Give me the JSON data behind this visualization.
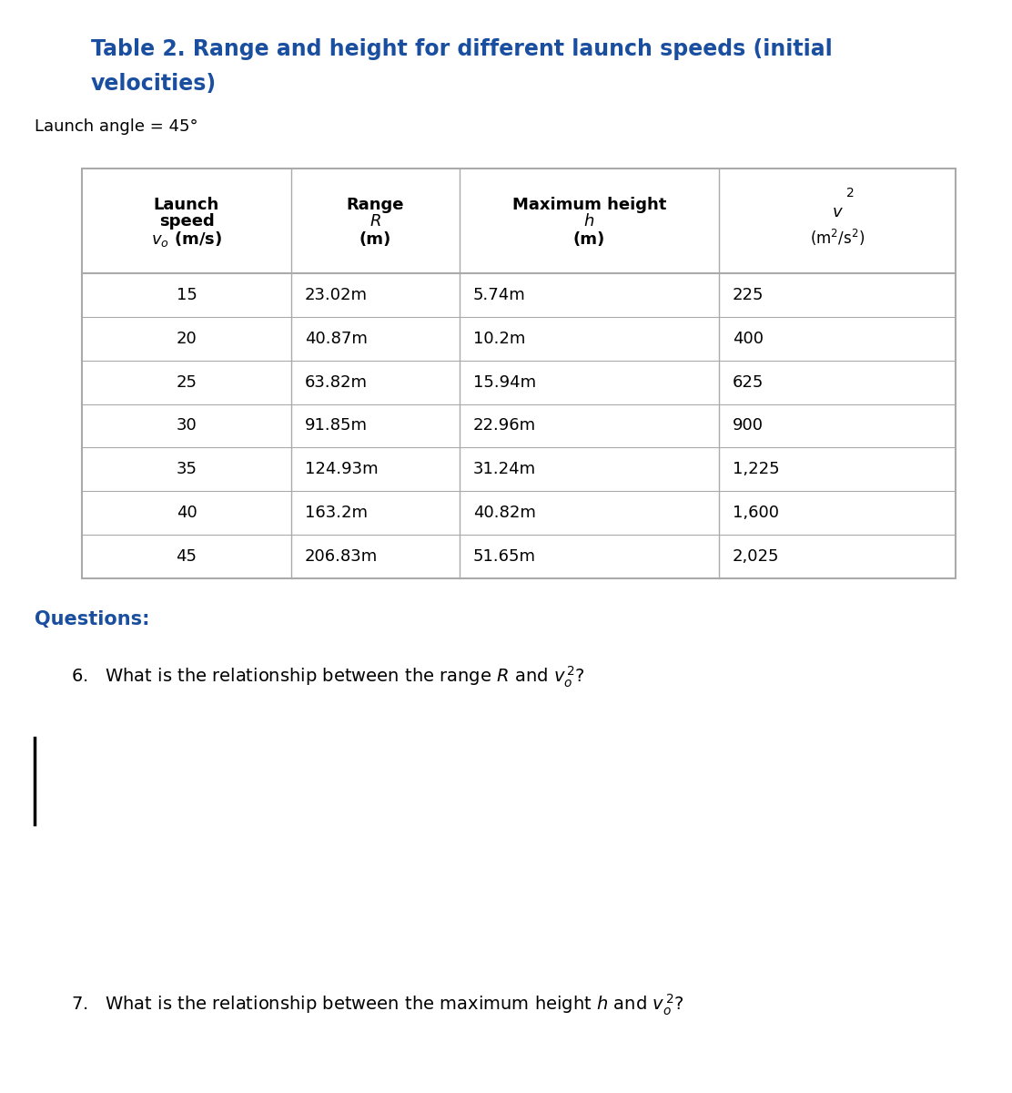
{
  "title_line1": "Table 2. Range and height for different launch speeds (initial",
  "title_line2": "velocities)",
  "subtitle": "Launch angle = 45°",
  "rows": [
    [
      "15",
      "23.02m",
      "5.74m",
      "225"
    ],
    [
      "20",
      "40.87m",
      "10.2m",
      "400"
    ],
    [
      "25",
      "63.82m",
      "15.94m",
      "625"
    ],
    [
      "30",
      "91.85m",
      "22.96m",
      "900"
    ],
    [
      "35",
      "124.93m",
      "31.24m",
      "1,225"
    ],
    [
      "40",
      "163.2m",
      "40.82m",
      "1,600"
    ],
    [
      "45",
      "206.83m",
      "51.65m",
      "2,025"
    ]
  ],
  "questions_label": "Questions:",
  "q6": "6.   What is the relationship between the range $R$ and $v_o^{\\,2}$?",
  "q7": "7.   What is the relationship between the maximum height $h$ and $v_o^{\\,2}$?",
  "title_color": "#1a4fa0",
  "questions_color": "#1a4fa0",
  "body_text_color": "#000000",
  "bg_color": "#ffffff",
  "table_border_color": "#aaaaaa",
  "font_size_title": 17,
  "font_size_subtitle": 13,
  "font_size_table": 13,
  "font_size_header": 13,
  "font_size_questions": 15,
  "font_size_q": 14
}
